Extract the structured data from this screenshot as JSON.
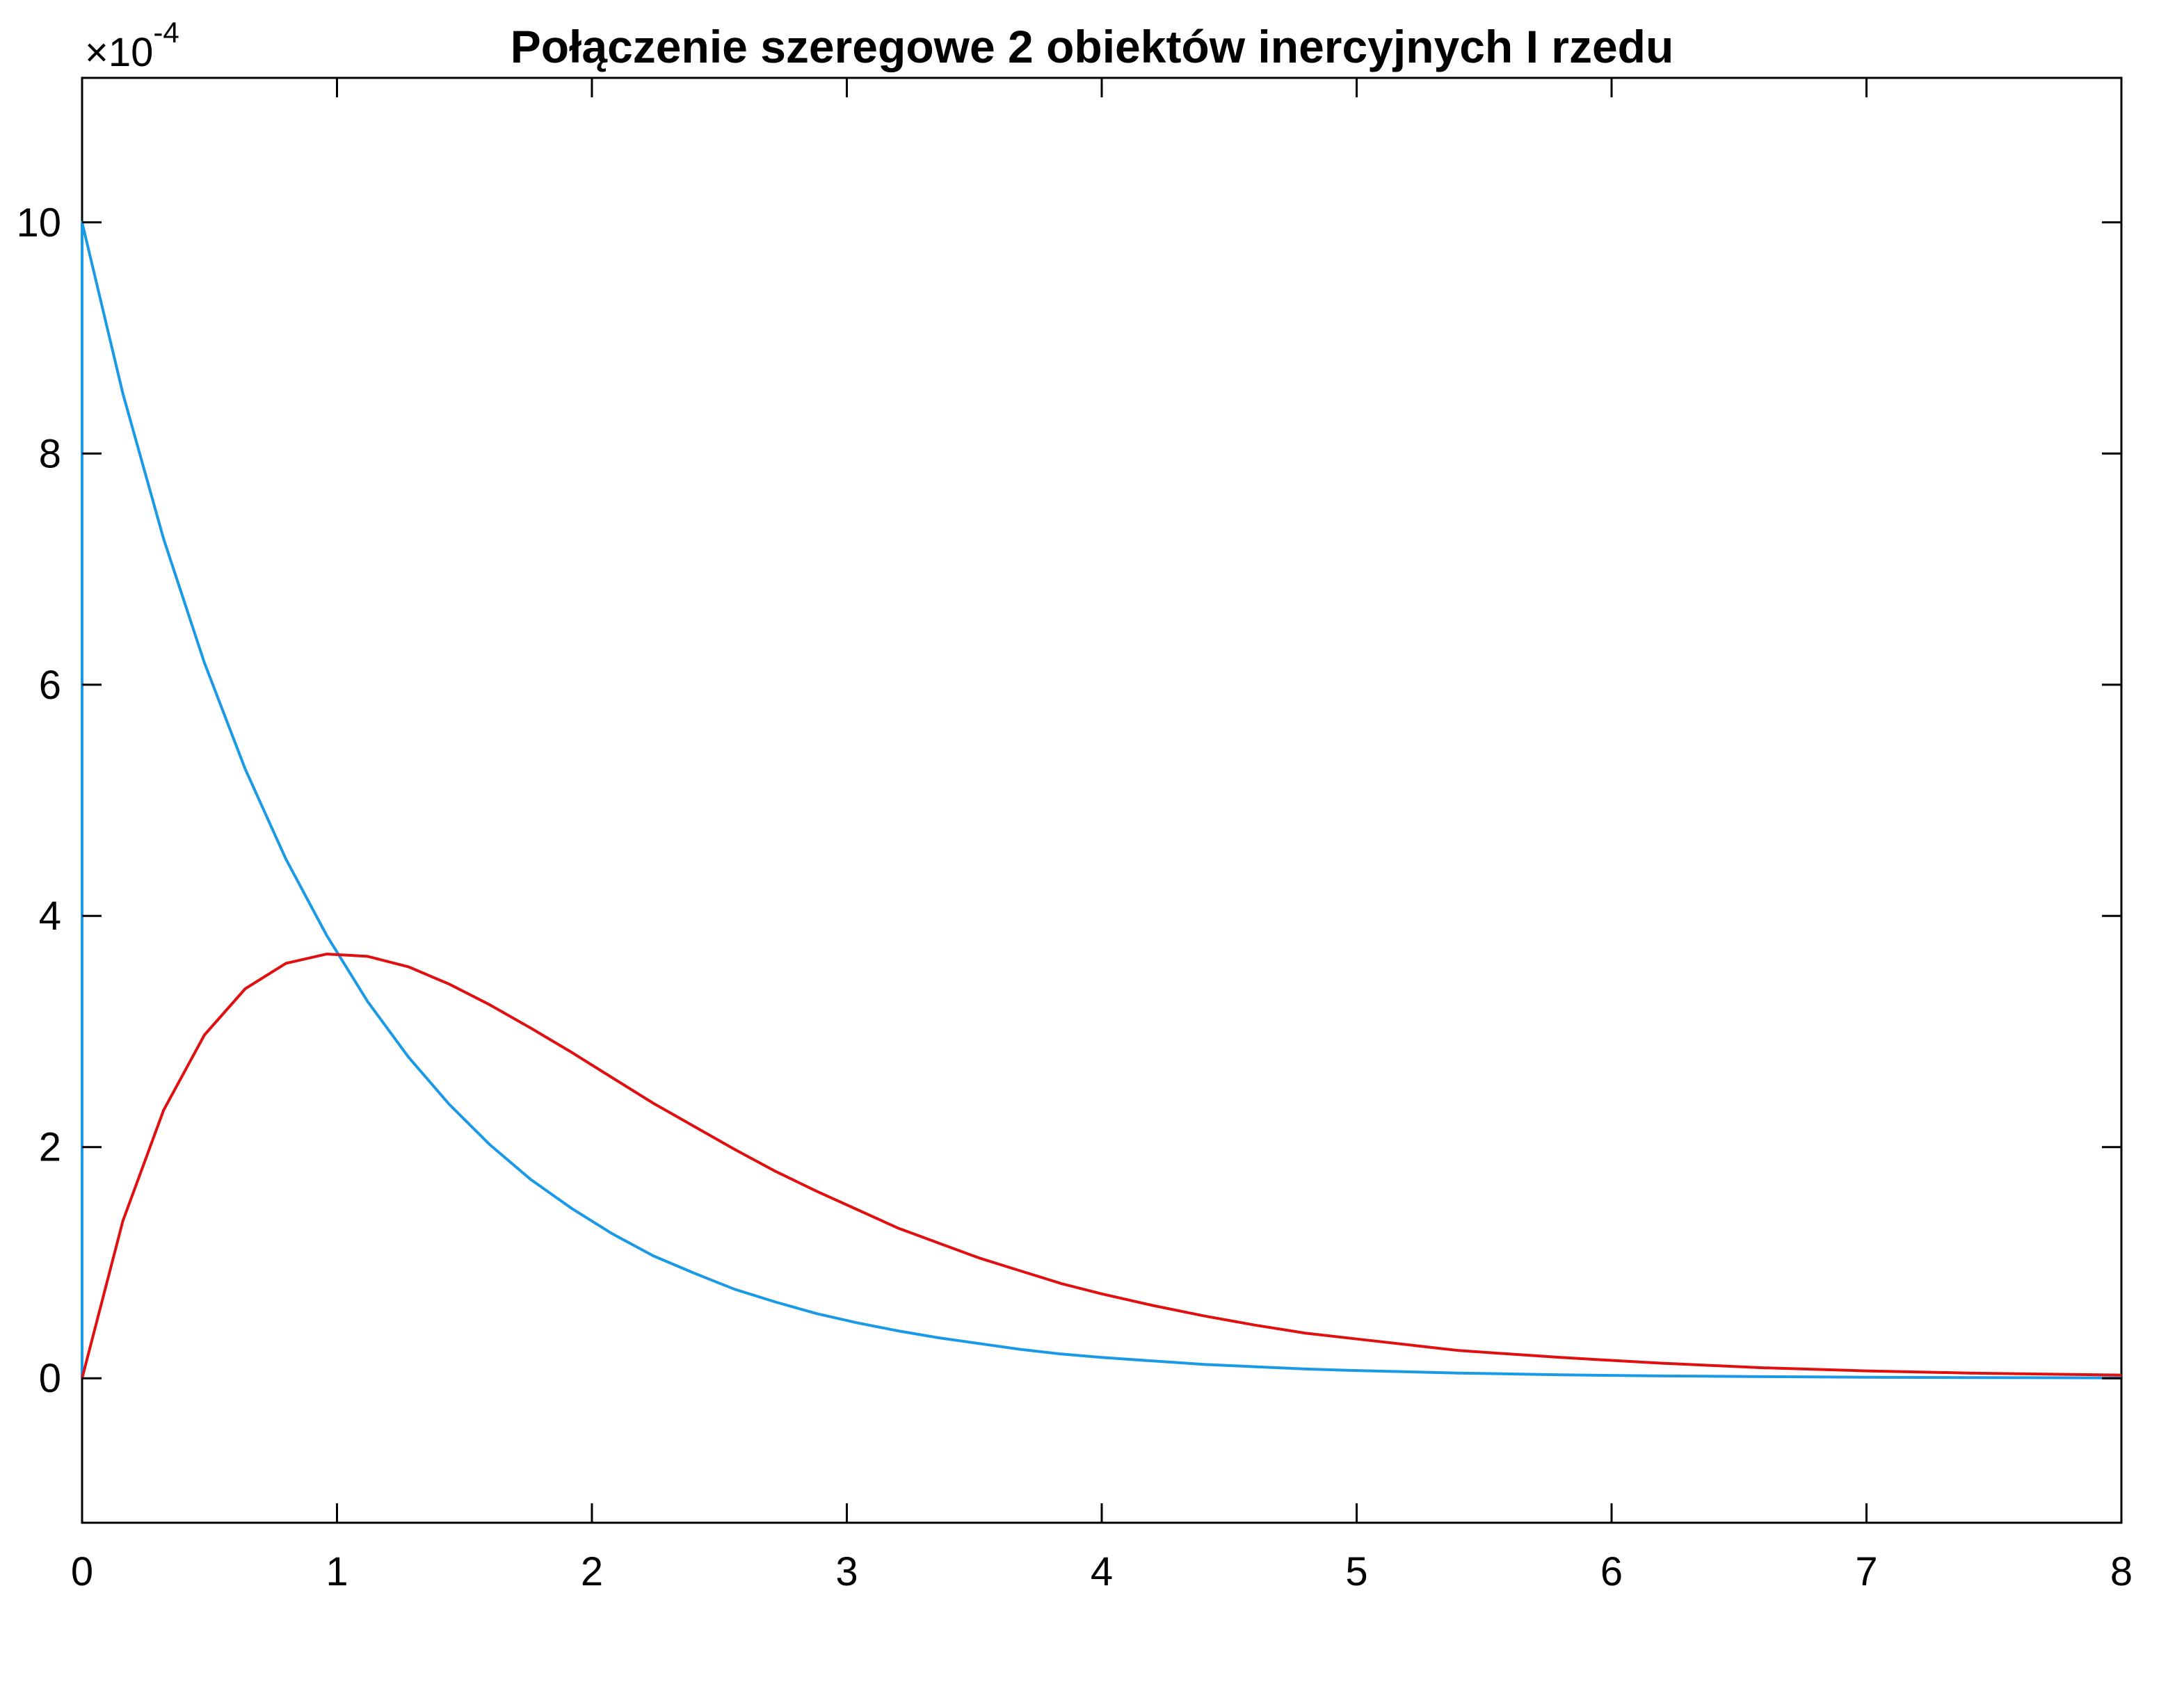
{
  "chart_data": {
    "type": "line",
    "title": "Połączenie szeregowe 2 obiektów inercyjnych I rzedu",
    "xlabel": "",
    "ylabel": "",
    "xlim": [
      0,
      8
    ],
    "ylim": [
      -1.25,
      11.25
    ],
    "y_exponent_label": {
      "base": "×10",
      "exponent": "-4"
    },
    "x_ticks": [
      0,
      1,
      2,
      3,
      4,
      5,
      6,
      7,
      8
    ],
    "x_tick_labels": [
      "0",
      "1",
      "2",
      "3",
      "4",
      "5",
      "6",
      "7",
      "8"
    ],
    "y_ticks": [
      0,
      2,
      4,
      6,
      8,
      10
    ],
    "y_tick_labels": [
      "0",
      "2",
      "4",
      "6",
      "8",
      "10"
    ],
    "grid": false,
    "series": [
      {
        "color": "#1a9ae6",
        "x": [
          0,
          0,
          0.16,
          0.32,
          0.48,
          0.64,
          0.8,
          0.96,
          1.12,
          1.28,
          1.44,
          1.6,
          1.76,
          1.92,
          2.08,
          2.24,
          2.4,
          2.56,
          2.72,
          2.88,
          3.04,
          3.2,
          3.36,
          3.52,
          3.68,
          3.84,
          4.0,
          4.2,
          4.4,
          4.6,
          4.8,
          5.0,
          5.4,
          5.8,
          6.2,
          6.6,
          7.0,
          7.4,
          8.0
        ],
        "y": [
          0,
          10,
          8.52,
          7.26,
          6.19,
          5.27,
          4.49,
          3.83,
          3.26,
          2.78,
          2.37,
          2.02,
          1.72,
          1.47,
          1.25,
          1.06,
          0.91,
          0.77,
          0.66,
          0.56,
          0.48,
          0.41,
          0.35,
          0.3,
          0.25,
          0.21,
          0.18,
          0.15,
          0.12,
          0.1,
          0.08,
          0.067,
          0.045,
          0.03,
          0.02,
          0.014,
          0.009,
          0.006,
          0.003
        ]
      },
      {
        "color": "#e01010",
        "x": [
          0,
          0.16,
          0.32,
          0.48,
          0.64,
          0.8,
          0.96,
          1.12,
          1.28,
          1.44,
          1.6,
          1.76,
          1.92,
          2.08,
          2.24,
          2.4,
          2.56,
          2.72,
          2.88,
          3.04,
          3.2,
          3.36,
          3.52,
          3.68,
          3.84,
          4.0,
          4.2,
          4.4,
          4.6,
          4.8,
          5.0,
          5.4,
          5.8,
          6.2,
          6.6,
          7.0,
          7.4,
          8.0
        ],
        "y": [
          0,
          1.36,
          2.32,
          2.97,
          3.37,
          3.59,
          3.67,
          3.65,
          3.56,
          3.41,
          3.23,
          3.03,
          2.82,
          2.6,
          2.38,
          2.18,
          1.98,
          1.79,
          1.62,
          1.46,
          1.3,
          1.17,
          1.04,
          0.93,
          0.82,
          0.73,
          0.63,
          0.54,
          0.46,
          0.39,
          0.34,
          0.24,
          0.18,
          0.13,
          0.09,
          0.064,
          0.045,
          0.027
        ]
      }
    ]
  }
}
